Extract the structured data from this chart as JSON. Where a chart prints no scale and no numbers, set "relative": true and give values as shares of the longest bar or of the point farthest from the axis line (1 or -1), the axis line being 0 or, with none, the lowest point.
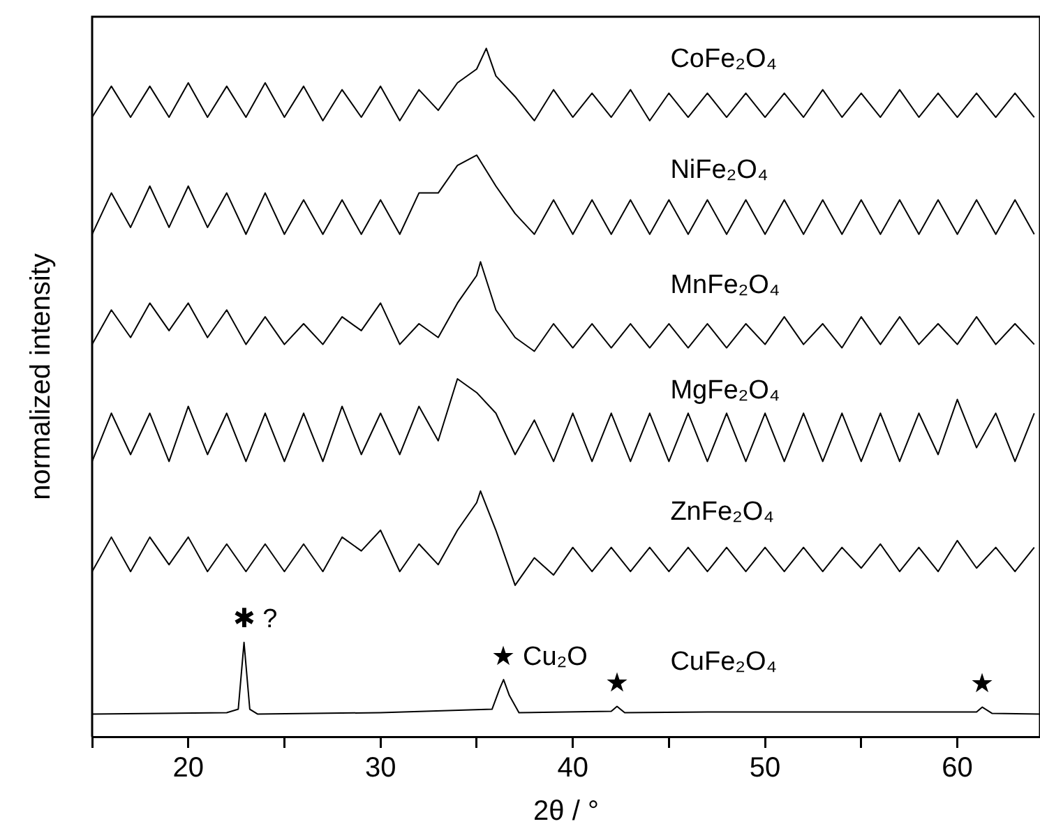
{
  "chart_data": {
    "type": "line",
    "relative": true,
    "xlabel": "2θ / °",
    "ylabel": "normalized intensity",
    "xlim": [
      15,
      64.3
    ],
    "xticks": [
      {
        "value": 15,
        "label": null
      },
      20,
      {
        "value": 25,
        "label": null
      },
      30,
      {
        "value": 35,
        "label": null
      },
      40,
      {
        "value": 45,
        "label": null
      },
      50,
      {
        "value": 55,
        "label": null
      },
      60
    ],
    "grid": false,
    "legend": false,
    "marker": "none",
    "line_style": "solid",
    "series": [
      {
        "name": "CoFe₂O₄",
        "color": "#000000",
        "x": [
          15,
          16,
          17,
          18,
          19,
          20,
          21,
          22,
          23,
          24,
          25,
          26,
          27,
          28,
          29,
          30,
          31,
          32,
          33,
          34,
          35,
          35.5,
          36,
          37,
          38,
          39,
          40,
          41,
          42,
          43,
          44,
          45,
          46,
          47,
          48,
          49,
          50,
          51,
          52,
          53,
          54,
          55,
          56,
          57,
          58,
          59,
          60,
          61,
          62,
          63,
          64
        ],
        "values": [
          0.9,
          0.945,
          0.9,
          0.945,
          0.9,
          0.95,
          0.9,
          0.945,
          0.9,
          0.95,
          0.9,
          0.945,
          0.895,
          0.94,
          0.9,
          0.945,
          0.895,
          0.94,
          0.91,
          0.95,
          0.97,
          1.0,
          0.96,
          0.93,
          0.895,
          0.94,
          0.9,
          0.935,
          0.9,
          0.94,
          0.895,
          0.935,
          0.9,
          0.935,
          0.9,
          0.935,
          0.9,
          0.935,
          0.9,
          0.94,
          0.9,
          0.935,
          0.9,
          0.94,
          0.9,
          0.935,
          0.9,
          0.935,
          0.9,
          0.935,
          0.9
        ]
      },
      {
        "name": "NiFe₂O₄",
        "color": "#000000",
        "x": [
          15,
          16,
          17,
          18,
          19,
          20,
          21,
          22,
          23,
          24,
          25,
          26,
          27,
          28,
          29,
          30,
          31,
          32,
          33,
          34,
          35,
          36,
          37,
          38,
          39,
          40,
          41,
          42,
          43,
          44,
          45,
          46,
          47,
          48,
          49,
          50,
          51,
          52,
          53,
          54,
          55,
          56,
          57,
          58,
          59,
          60,
          61,
          62,
          63,
          64
        ],
        "values": [
          0.73,
          0.79,
          0.74,
          0.8,
          0.74,
          0.8,
          0.74,
          0.79,
          0.73,
          0.79,
          0.73,
          0.78,
          0.73,
          0.78,
          0.73,
          0.78,
          0.73,
          0.79,
          0.79,
          0.83,
          0.845,
          0.8,
          0.76,
          0.73,
          0.78,
          0.73,
          0.78,
          0.73,
          0.78,
          0.73,
          0.78,
          0.73,
          0.78,
          0.73,
          0.78,
          0.73,
          0.78,
          0.73,
          0.78,
          0.73,
          0.78,
          0.73,
          0.78,
          0.73,
          0.78,
          0.73,
          0.78,
          0.73,
          0.78,
          0.73
        ]
      },
      {
        "name": "MnFe₂O₄",
        "color": "#000000",
        "x": [
          15,
          16,
          17,
          18,
          19,
          20,
          21,
          22,
          23,
          24,
          25,
          26,
          27,
          28,
          29,
          30,
          31,
          32,
          33,
          34,
          35,
          35.2,
          36,
          37,
          38,
          39,
          40,
          41,
          42,
          43,
          44,
          45,
          46,
          47,
          48,
          49,
          50,
          51,
          52,
          53,
          54,
          55,
          56,
          57,
          58,
          59,
          60,
          61,
          62,
          63,
          64
        ],
        "values": [
          0.57,
          0.62,
          0.58,
          0.63,
          0.59,
          0.63,
          0.58,
          0.62,
          0.57,
          0.61,
          0.57,
          0.6,
          0.57,
          0.61,
          0.59,
          0.63,
          0.57,
          0.6,
          0.58,
          0.63,
          0.67,
          0.69,
          0.62,
          0.58,
          0.56,
          0.6,
          0.565,
          0.6,
          0.565,
          0.6,
          0.565,
          0.6,
          0.565,
          0.6,
          0.565,
          0.6,
          0.57,
          0.61,
          0.57,
          0.6,
          0.565,
          0.61,
          0.57,
          0.61,
          0.57,
          0.6,
          0.57,
          0.61,
          0.57,
          0.6,
          0.57
        ]
      },
      {
        "name": "MgFe₂O₄",
        "color": "#000000",
        "x": [
          15,
          16,
          17,
          18,
          19,
          20,
          21,
          22,
          23,
          24,
          25,
          26,
          27,
          28,
          29,
          30,
          31,
          32,
          33,
          34,
          35,
          36,
          37,
          38,
          39,
          40,
          41,
          42,
          43,
          44,
          45,
          46,
          47,
          48,
          49,
          50,
          51,
          52,
          53,
          54,
          55,
          56,
          57,
          58,
          59,
          60,
          61,
          62,
          63,
          64
        ],
        "values": [
          0.4,
          0.47,
          0.41,
          0.47,
          0.4,
          0.48,
          0.41,
          0.47,
          0.4,
          0.47,
          0.4,
          0.47,
          0.4,
          0.48,
          0.41,
          0.47,
          0.41,
          0.48,
          0.43,
          0.52,
          0.5,
          0.47,
          0.41,
          0.46,
          0.4,
          0.47,
          0.4,
          0.47,
          0.4,
          0.47,
          0.4,
          0.47,
          0.4,
          0.47,
          0.4,
          0.47,
          0.4,
          0.47,
          0.4,
          0.47,
          0.4,
          0.47,
          0.4,
          0.47,
          0.41,
          0.49,
          0.42,
          0.47,
          0.4,
          0.47
        ]
      },
      {
        "name": "ZnFe₂O₄",
        "color": "#000000",
        "x": [
          15,
          16,
          17,
          18,
          19,
          20,
          21,
          22,
          23,
          24,
          25,
          26,
          27,
          28,
          29,
          30,
          31,
          32,
          33,
          34,
          35,
          35.2,
          36,
          37,
          38,
          39,
          40,
          41,
          42,
          43,
          44,
          45,
          46,
          47,
          48,
          49,
          50,
          51,
          52,
          53,
          54,
          55,
          56,
          57,
          58,
          59,
          60,
          61,
          62,
          63,
          64
        ],
        "values": [
          0.24,
          0.29,
          0.24,
          0.29,
          0.25,
          0.29,
          0.24,
          0.28,
          0.24,
          0.28,
          0.24,
          0.28,
          0.24,
          0.29,
          0.27,
          0.3,
          0.24,
          0.28,
          0.25,
          0.3,
          0.34,
          0.357,
          0.3,
          0.22,
          0.26,
          0.235,
          0.275,
          0.24,
          0.275,
          0.24,
          0.275,
          0.24,
          0.275,
          0.24,
          0.275,
          0.24,
          0.275,
          0.24,
          0.275,
          0.24,
          0.275,
          0.245,
          0.28,
          0.24,
          0.275,
          0.24,
          0.285,
          0.245,
          0.275,
          0.24,
          0.275
        ]
      },
      {
        "name": "CuFe₂O₄",
        "color": "#000000",
        "x": [
          15,
          22,
          22.6,
          22.9,
          23.2,
          23.6,
          30,
          35.8,
          36.2,
          36.4,
          36.7,
          37.2,
          42,
          42.3,
          42.7,
          47,
          61,
          61.3,
          61.8,
          64.3
        ],
        "values": [
          0.033,
          0.035,
          0.04,
          0.137,
          0.04,
          0.033,
          0.035,
          0.04,
          0.07,
          0.083,
          0.06,
          0.035,
          0.037,
          0.044,
          0.035,
          0.036,
          0.036,
          0.043,
          0.034,
          0.033
        ]
      }
    ],
    "annotations": [
      {
        "text": "✱ ?",
        "x": 22.9,
        "y": 0.137
      },
      {
        "text": "★ Cu₂O",
        "x": 36.4,
        "y": 0.083
      },
      {
        "text": "★",
        "x": 42.3,
        "y": 0.044
      },
      {
        "text": "★",
        "x": 61.3,
        "y": 0.043
      }
    ]
  }
}
